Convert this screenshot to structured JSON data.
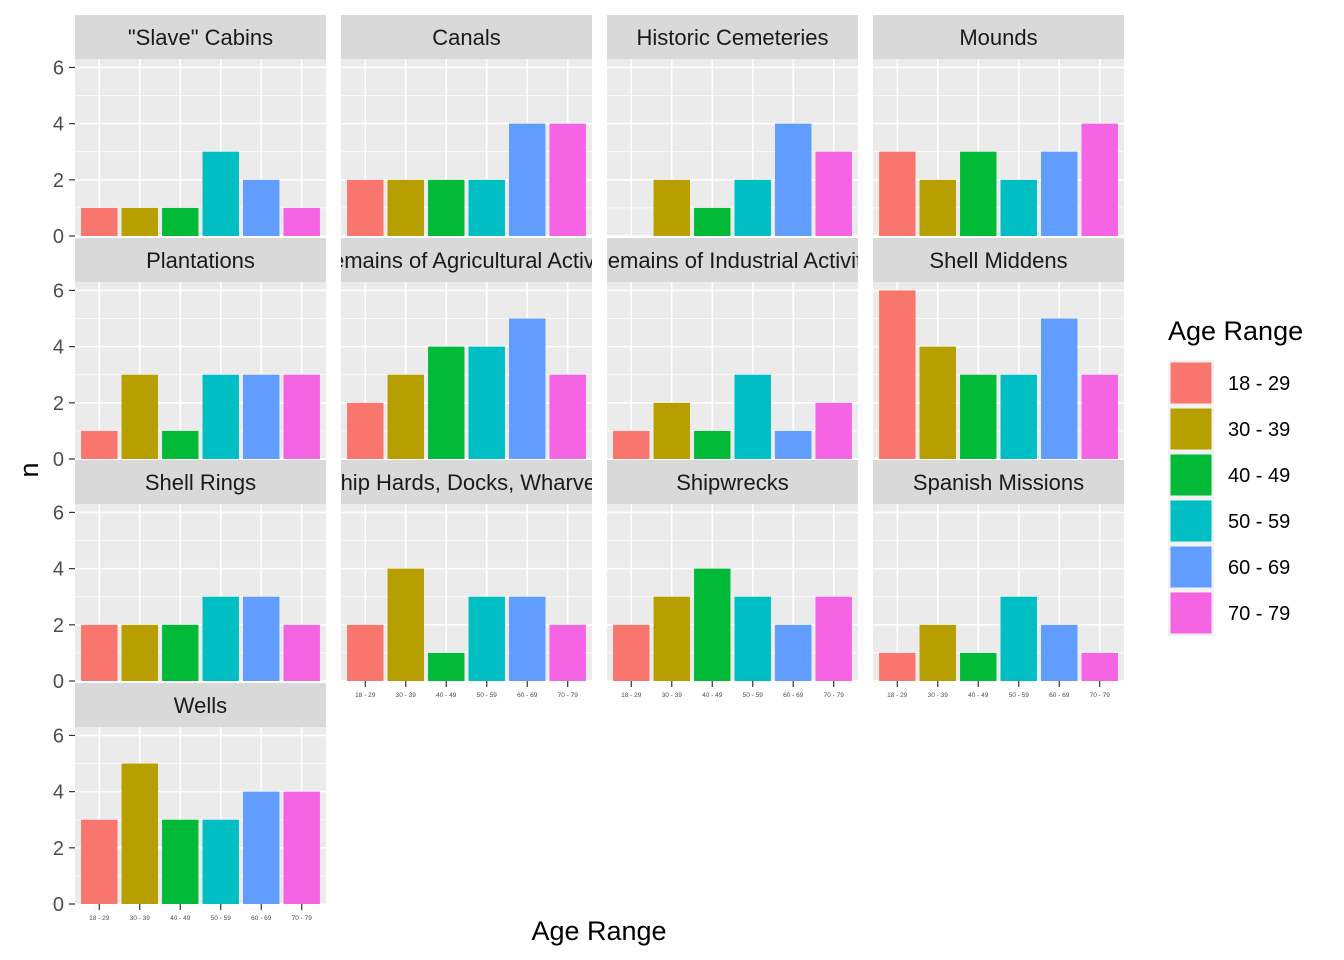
{
  "chart_data": {
    "type": "bar",
    "xlabel": "Age Range",
    "ylabel": "n",
    "ylim": [
      0,
      6.3
    ],
    "yticks": [
      0,
      2,
      4,
      6
    ],
    "grid": true,
    "legend": {
      "title": "Age Range",
      "placement": "right",
      "entries": [
        "18 - 29",
        "30 - 39",
        "40 - 49",
        "50 - 59",
        "60 - 69",
        "70 - 79"
      ]
    },
    "colors": [
      "#F8766D",
      "#B79F00",
      "#00BA38",
      "#00BFC4",
      "#619CFF",
      "#F564E3"
    ],
    "categories": [
      "18 - 29",
      "30 - 39",
      "40 - 49",
      "50 - 59",
      "60 - 69",
      "70 - 79"
    ],
    "facets": [
      {
        "title": "\"Slave\" Cabins",
        "values": [
          1,
          1,
          1,
          3,
          2,
          1
        ]
      },
      {
        "title": "Canals",
        "values": [
          2,
          2,
          2,
          2,
          4,
          4
        ]
      },
      {
        "title": "Historic Cemeteries",
        "values": [
          null,
          2,
          1,
          2,
          4,
          3
        ]
      },
      {
        "title": "Mounds",
        "values": [
          3,
          2,
          3,
          2,
          3,
          4
        ]
      },
      {
        "title": "Plantations",
        "values": [
          1,
          3,
          1,
          3,
          3,
          3
        ]
      },
      {
        "title": "Remains of Agricultural Activity",
        "values": [
          2,
          3,
          4,
          4,
          5,
          3
        ]
      },
      {
        "title": "Remains of Industrial Activity",
        "values": [
          1,
          2,
          1,
          3,
          1,
          2
        ]
      },
      {
        "title": "Shell Middens",
        "values": [
          6,
          4,
          3,
          3,
          5,
          3
        ]
      },
      {
        "title": "Shell Rings",
        "values": [
          2,
          2,
          2,
          3,
          3,
          2
        ]
      },
      {
        "title": "Ship Hards, Docks, Wharves",
        "values": [
          2,
          4,
          1,
          3,
          3,
          2
        ]
      },
      {
        "title": "Shipwrecks",
        "values": [
          2,
          3,
          4,
          3,
          2,
          3
        ]
      },
      {
        "title": "Spanish Missions",
        "values": [
          1,
          2,
          1,
          3,
          2,
          1
        ]
      },
      {
        "title": "Wells",
        "values": [
          3,
          5,
          3,
          3,
          4,
          4
        ]
      }
    ]
  }
}
